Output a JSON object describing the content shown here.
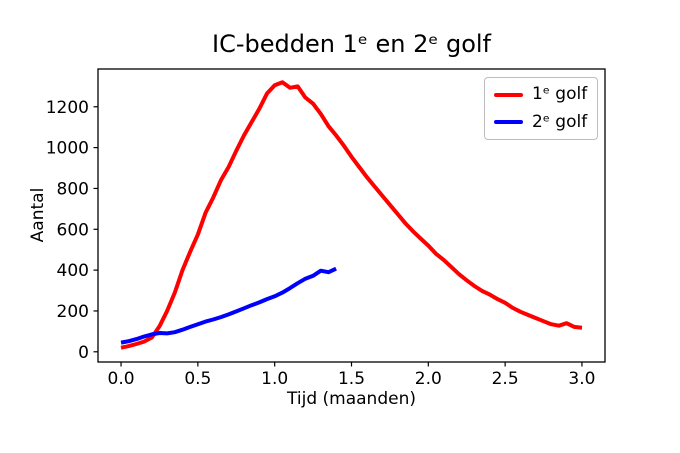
{
  "figure": {
    "background": "#ffffff",
    "frame_color": "#000000"
  },
  "chart_data": {
    "type": "line",
    "title": "IC-bedden 1ᵉ en 2ᵉ golf",
    "xlabel": "Tijd (maanden)",
    "ylabel": "Aantal",
    "xlim": [
      -0.15,
      3.15
    ],
    "ylim": [
      -50,
      1385
    ],
    "xticks": [
      0,
      0.5,
      1,
      1.5,
      2,
      2.5,
      3
    ],
    "xtick_labels": [
      "0.0",
      "0.5",
      "1.0",
      "1.5",
      "2.0",
      "2.5",
      "3.0"
    ],
    "yticks": [
      0,
      200,
      400,
      600,
      800,
      1000,
      1200
    ],
    "ytick_labels": [
      "0",
      "200",
      "400",
      "600",
      "800",
      "1000",
      "1200"
    ],
    "grid": false,
    "legend_position": "upper right",
    "series": [
      {
        "name": "1ᵉ golf",
        "color": "#ff0000",
        "line_width": 4,
        "x_start": 0,
        "x_step": 0.05,
        "values": [
          20,
          28,
          38,
          50,
          70,
          125,
          200,
          290,
          400,
          490,
          575,
          680,
          755,
          840,
          905,
          985,
          1060,
          1125,
          1190,
          1265,
          1305,
          1320,
          1293,
          1300,
          1245,
          1215,
          1165,
          1105,
          1060,
          1010,
          955,
          905,
          855,
          810,
          765,
          720,
          675,
          630,
          590,
          555,
          520,
          480,
          450,
          415,
          380,
          350,
          322,
          298,
          280,
          258,
          240,
          215,
          196,
          180,
          165,
          150,
          135,
          128,
          140,
          122,
          118
        ]
      },
      {
        "name": "2ᵉ golf",
        "color": "#0000ff",
        "line_width": 4,
        "x_start": 0,
        "x_step": 0.05,
        "values": [
          45,
          52,
          62,
          75,
          85,
          92,
          90,
          96,
          108,
          122,
          135,
          148,
          158,
          170,
          183,
          198,
          213,
          228,
          242,
          258,
          272,
          290,
          312,
          336,
          358,
          372,
          397,
          390,
          407
        ]
      }
    ]
  }
}
